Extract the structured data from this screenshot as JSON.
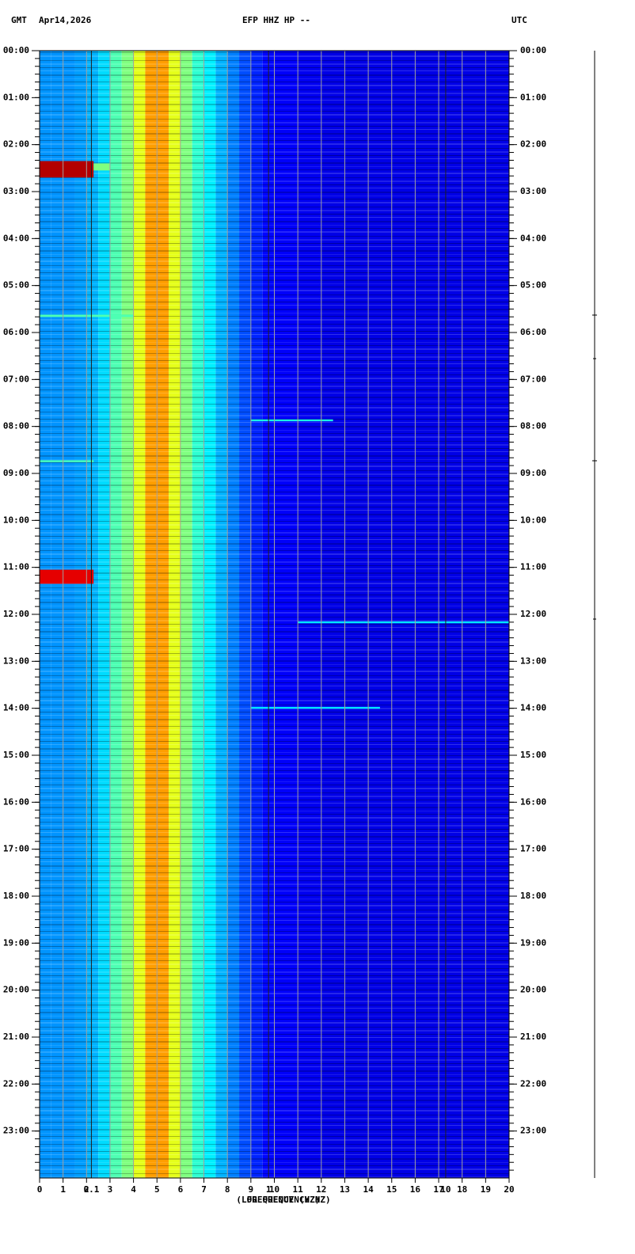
{
  "chart_data": {
    "type": "spectrogram",
    "header": {
      "left": "GMT",
      "date": "Apr14,2026",
      "title": "EFP HHZ HP --",
      "right": "UTC"
    },
    "x_label": "FREQUENCY (HZ)",
    "x_label_log": "(LOG FREQUENCY HZ)",
    "xlim": [
      0,
      20
    ],
    "xticks": [
      0,
      1,
      2,
      3,
      4,
      5,
      6,
      7,
      8,
      9,
      10,
      11,
      12,
      13,
      14,
      15,
      16,
      17,
      18,
      19,
      20
    ],
    "log_xlim": [
      0.051,
      22.8
    ],
    "log_xticks": [
      0.1,
      1,
      10
    ],
    "ylim": [
      0,
      24
    ],
    "yticks": [
      {
        "value": 0,
        "label": "00:00"
      },
      {
        "value": 1,
        "label": "01:00"
      },
      {
        "value": 2,
        "label": "02:00"
      },
      {
        "value": 3,
        "label": "03:00"
      },
      {
        "value": 4,
        "label": "04:00"
      },
      {
        "value": 5,
        "label": "05:00"
      },
      {
        "value": 6,
        "label": "06:00"
      },
      {
        "value": 7,
        "label": "07:00"
      },
      {
        "value": 8,
        "label": "08:00"
      },
      {
        "value": 9,
        "label": "09:00"
      },
      {
        "value": 10,
        "label": "10:00"
      },
      {
        "value": 11,
        "label": "11:00"
      },
      {
        "value": 12,
        "label": "12:00"
      },
      {
        "value": 13,
        "label": "13:00"
      },
      {
        "value": 14,
        "label": "14:00"
      },
      {
        "value": 15,
        "label": "15:00"
      },
      {
        "value": 16,
        "label": "16:00"
      },
      {
        "value": 17,
        "label": "17:00"
      },
      {
        "value": 18,
        "label": "18:00"
      },
      {
        "value": 19,
        "label": "19:00"
      },
      {
        "value": 20,
        "label": "20:00"
      },
      {
        "value": 21,
        "label": "21:00"
      },
      {
        "value": 22,
        "label": "22:00"
      },
      {
        "value": 23,
        "label": "23:00"
      }
    ],
    "grid": true,
    "band_edges": [
      0,
      0.5,
      1,
      1.5,
      2,
      2.5,
      3,
      3.5,
      4,
      4.5,
      5,
      5.5,
      6,
      6.5,
      7,
      7.5,
      8,
      8.5,
      9,
      9.5,
      10,
      11,
      12,
      13,
      14,
      15,
      16,
      17,
      18,
      19,
      20
    ],
    "power": [
      0.27,
      0.27,
      0.27,
      0.28,
      0.3,
      0.34,
      0.45,
      0.5,
      0.6,
      0.72,
      0.72,
      0.6,
      0.5,
      0.42,
      0.36,
      0.3,
      0.25,
      0.2,
      0.16,
      0.13,
      0.12,
      0.11,
      0.1,
      0.1,
      0.1,
      0.1,
      0.1,
      0.1,
      0.1,
      0.1
    ],
    "events": [
      {
        "time": 2.35,
        "duration": 0.35,
        "fmin": 0,
        "fmax": 2.3,
        "power": 0.95
      },
      {
        "time": 2.4,
        "duration": 0.15,
        "fmin": 2.3,
        "fmax": 3,
        "power": 0.5
      },
      {
        "time": 5.62,
        "duration": 0.05,
        "fmin": 0,
        "fmax": 4,
        "power": 0.45
      },
      {
        "time": 7.85,
        "duration": 0.04,
        "fmin": 9,
        "fmax": 12.5,
        "power": 0.4
      },
      {
        "time": 8.72,
        "duration": 0.04,
        "fmin": 0,
        "fmax": 2.3,
        "power": 0.45
      },
      {
        "time": 11.05,
        "duration": 0.3,
        "fmin": 0,
        "fmax": 2.3,
        "power": 0.9
      },
      {
        "time": 12.15,
        "duration": 0.04,
        "fmin": 11,
        "fmax": 20,
        "power": 0.35
      },
      {
        "time": 13.97,
        "duration": 0.04,
        "fmin": 9,
        "fmax": 14.5,
        "power": 0.35
      }
    ]
  }
}
